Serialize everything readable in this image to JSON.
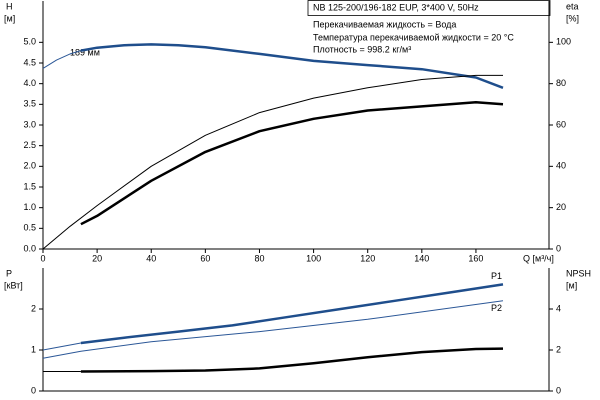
{
  "chart_data": [
    {
      "type": "line",
      "title": "NB 125-200/196-182 EUP, 3*400 V, 50Hz",
      "annotations": [
        "Перекачиваемая жидкость = Вода",
        "Температура перекачиваемой жидкости = 20 °C",
        "Плотность = 998.2 кг/м³",
        "189 мм"
      ],
      "xlabel": "Q [м³/ч]",
      "ylabel": "H",
      "yunit": "[м]",
      "y2label": "eta",
      "y2unit": "[%]",
      "xlim": [
        0,
        187
      ],
      "xticks": [
        0,
        20,
        40,
        60,
        80,
        100,
        120,
        140,
        160
      ],
      "ylim": [
        0,
        6
      ],
      "yticks": [
        {
          "value": 0,
          "label": "0.0"
        },
        {
          "value": 0.5,
          "label": "0.5"
        },
        {
          "value": 1,
          "label": "1.0"
        },
        {
          "value": 1.5,
          "label": "1.5"
        },
        {
          "value": 2,
          "label": "2.0"
        },
        {
          "value": 2.5,
          "label": "2.5"
        },
        {
          "value": 3,
          "label": "3.0"
        },
        {
          "value": 3.5,
          "label": "3.5"
        },
        {
          "value": 4,
          "label": "4.0"
        },
        {
          "value": 4.5,
          "label": "4.5"
        },
        {
          "value": 5,
          "label": "5.0"
        }
      ],
      "y2lim": [
        0,
        120
      ],
      "y2ticks": [
        0,
        20,
        40,
        60,
        80,
        100
      ],
      "series": [
        {
          "color": "#2b5797",
          "width": 1,
          "x": [
            0,
            5,
            10,
            14
          ],
          "values": [
            4.37,
            4.57,
            4.72,
            4.8
          ]
        },
        {
          "color": "#1f4e8c",
          "width": 2.5,
          "x": [
            14,
            20,
            30,
            40,
            50,
            60,
            80,
            100,
            120,
            140,
            160,
            170
          ],
          "values": [
            4.8,
            4.87,
            4.93,
            4.95,
            4.93,
            4.88,
            4.72,
            4.55,
            4.45,
            4.35,
            4.15,
            3.9
          ]
        },
        {
          "color": "#000000",
          "width": 1,
          "axis": "y2",
          "x": [
            0,
            10,
            20,
            40,
            60,
            80,
            100,
            120,
            140,
            160,
            170
          ],
          "values": [
            0,
            11,
            21,
            40,
            55,
            66,
            73,
            78,
            82,
            84,
            84
          ]
        },
        {
          "color": "#000000",
          "width": 2.5,
          "axis": "y2",
          "x": [
            14,
            20,
            40,
            60,
            80,
            100,
            120,
            140,
            160,
            170
          ],
          "values": [
            12,
            16,
            33,
            47,
            57,
            63,
            67,
            69,
            71,
            70
          ]
        }
      ]
    },
    {
      "type": "line",
      "ylabel": "P",
      "yunit": "[кВт]",
      "y2label": "NPSH",
      "y2unit": "[м]",
      "xlim": [
        0,
        187
      ],
      "ylim": [
        0,
        3
      ],
      "yticks": [
        0,
        1,
        2
      ],
      "y2lim": [
        0,
        6
      ],
      "y2ticks": [
        0,
        2,
        4
      ],
      "series": [
        {
          "color": "#2b5797",
          "width": 1,
          "x": [
            0,
            14
          ],
          "values": [
            1.0,
            1.17
          ]
        },
        {
          "name": "P1",
          "color": "#1f4e8c",
          "width": 2.5,
          "x": [
            14,
            30,
            50,
            70,
            90,
            110,
            130,
            150,
            170
          ],
          "values": [
            1.17,
            1.3,
            1.45,
            1.6,
            1.8,
            2.0,
            2.2,
            2.4,
            2.6
          ]
        },
        {
          "name": "P2",
          "color": "#2b5797",
          "width": 1,
          "x": [
            0,
            14,
            40,
            80,
            120,
            170
          ],
          "values": [
            0.8,
            0.97,
            1.2,
            1.45,
            1.75,
            2.2
          ]
        },
        {
          "color": "#000000",
          "width": 1,
          "axis": "y2",
          "x": [
            0,
            14
          ],
          "values": [
            0.95,
            0.95
          ]
        },
        {
          "color": "#000000",
          "width": 2.5,
          "axis": "y2",
          "x": [
            14,
            40,
            60,
            80,
            100,
            120,
            140,
            160,
            170
          ],
          "values": [
            0.95,
            0.97,
            1.0,
            1.1,
            1.35,
            1.65,
            1.9,
            2.05,
            2.07
          ]
        }
      ]
    }
  ]
}
